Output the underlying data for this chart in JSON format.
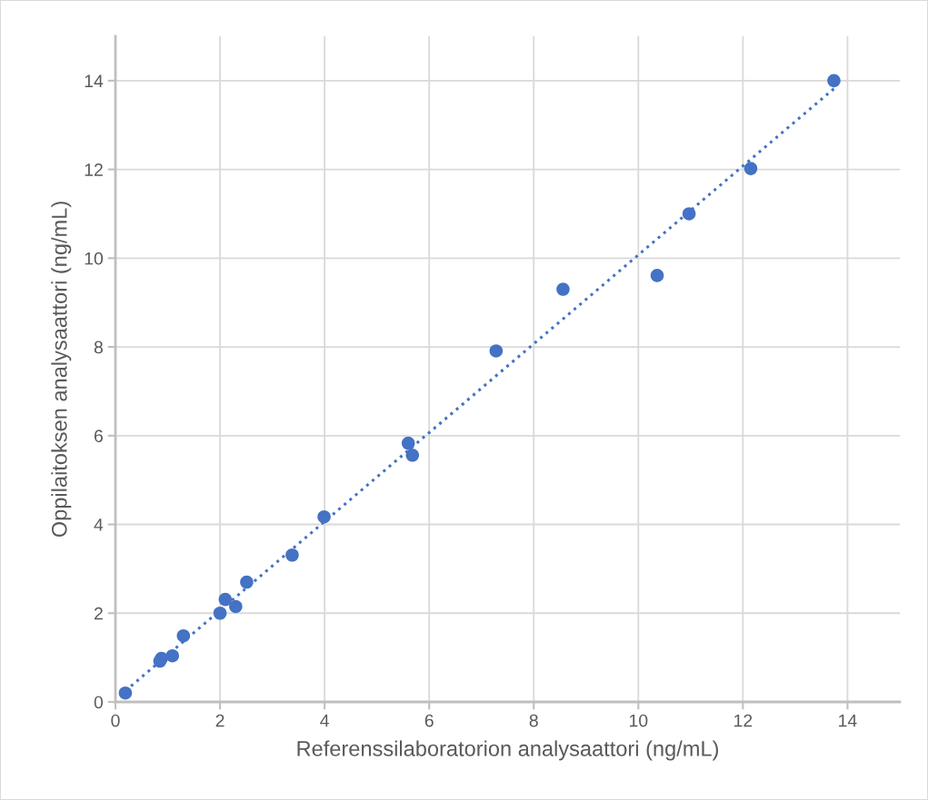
{
  "chart_data": {
    "type": "scatter",
    "xlabel": "Referenssilaboratorion analysaattori (ng/mL)",
    "ylabel": "Oppilaitoksen analysaattori (ng/mL)",
    "series": [
      {
        "type": "scatter",
        "color": "#4472c4",
        "marker": "circle",
        "x": [
          0.19,
          0.85,
          0.88,
          1.09,
          1.3,
          2.0,
          2.1,
          2.3,
          2.51,
          3.38,
          3.99,
          5.6,
          5.68,
          7.28,
          8.56,
          10.36,
          10.97,
          12.15,
          13.74
        ],
        "values": [
          0.2,
          0.92,
          0.98,
          1.04,
          1.49,
          2.0,
          2.31,
          2.15,
          2.7,
          3.31,
          4.17,
          5.83,
          5.56,
          7.91,
          9.3,
          9.61,
          11.0,
          12.02,
          14.0
        ]
      },
      {
        "type": "line",
        "color": "#4472c4",
        "line_style": "dotted",
        "x": [
          0.19,
          13.74
        ],
        "values": [
          0.25,
          13.82
        ]
      }
    ],
    "xlim": [
      0,
      15
    ],
    "ylim": [
      0,
      15
    ],
    "xticks": [
      0,
      2,
      4,
      6,
      8,
      10,
      12,
      14
    ],
    "yticks": [
      0,
      2,
      4,
      6,
      8,
      10,
      12,
      14
    ],
    "grid": true
  }
}
